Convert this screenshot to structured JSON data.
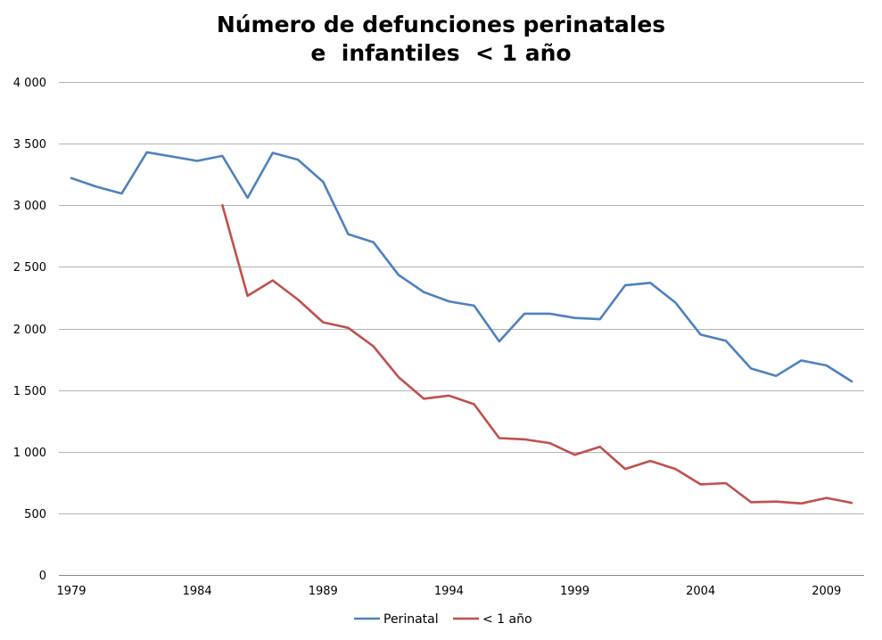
{
  "chart_data": {
    "type": "line",
    "title": [
      "Número de defunciones perinatales",
      "e  infantiles  < 1 año"
    ],
    "xlabel": "",
    "ylabel": "",
    "x": [
      1979,
      1980,
      1981,
      1982,
      1983,
      1984,
      1985,
      1986,
      1987,
      1988,
      1989,
      1990,
      1991,
      1992,
      1993,
      1994,
      1995,
      1996,
      1997,
      1998,
      1999,
      2000,
      2001,
      2002,
      2003,
      2004,
      2005,
      2006,
      2007,
      2008,
      2009,
      2010
    ],
    "xlim": [
      1979,
      2010
    ],
    "ylim": [
      0,
      4000
    ],
    "y_ticks": [
      0,
      500,
      1000,
      1500,
      2000,
      2500,
      3000,
      3500,
      4000
    ],
    "y_tick_labels": [
      "0",
      "500",
      "1 000",
      "1 500",
      "2 000",
      "2 500",
      "3 000",
      "3 500",
      "4 000"
    ],
    "x_ticks": [
      1979,
      1984,
      1989,
      1994,
      1999,
      2004,
      2009
    ],
    "x_tick_labels": [
      "1979",
      "1984",
      "1989",
      "1994",
      "1999",
      "2004",
      "2009"
    ],
    "grid": "horizontal",
    "legend_position": "bottom",
    "series": [
      {
        "name": "Perinatal",
        "color": "#4f81bd",
        "values": [
          3220,
          3150,
          3095,
          3430,
          3395,
          3360,
          3400,
          3060,
          3425,
          3370,
          3190,
          2765,
          2700,
          2435,
          2295,
          2220,
          2185,
          1895,
          2120,
          2120,
          2085,
          2075,
          2350,
          2370,
          2210,
          1950,
          1900,
          1675,
          1615,
          1740,
          1700,
          1570
        ]
      },
      {
        "name": "< 1 año",
        "color": "#c0504d",
        "values": [
          null,
          null,
          null,
          null,
          null,
          null,
          3000,
          2265,
          2390,
          2235,
          2050,
          2005,
          1855,
          1605,
          1430,
          1455,
          1385,
          1110,
          1100,
          1070,
          975,
          1040,
          860,
          925,
          860,
          735,
          745,
          590,
          595,
          580,
          625,
          585
        ]
      }
    ]
  }
}
